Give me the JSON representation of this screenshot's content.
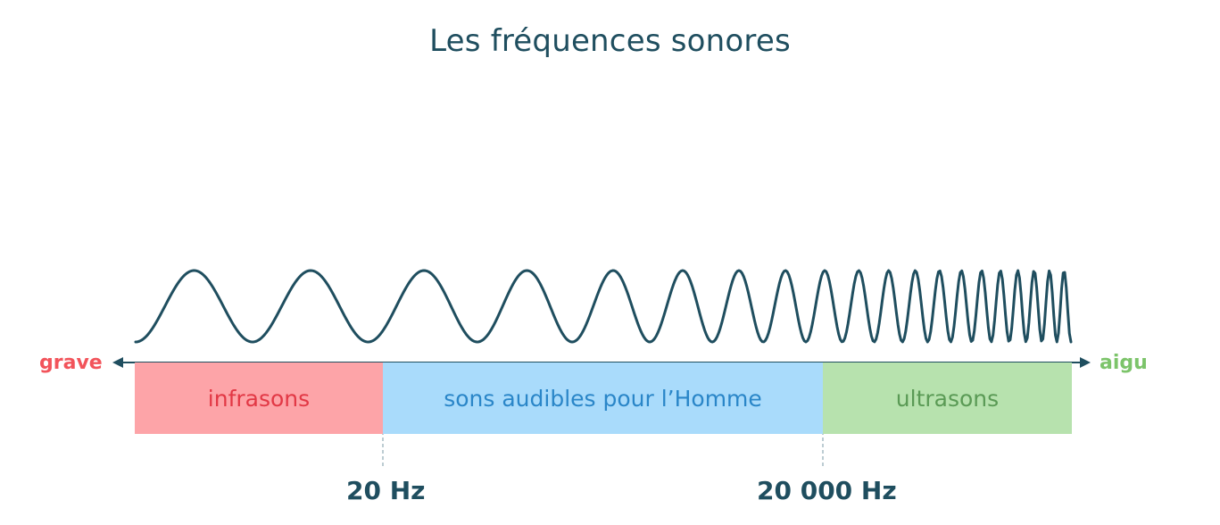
{
  "title": "Les fréquences sonores",
  "axis": {
    "left_label": "grave",
    "right_label": "aigu",
    "left_color": "#f2545b",
    "right_color": "#7cc46a",
    "line_color": "#1f4e5f"
  },
  "bands": [
    {
      "label": "infrasons",
      "bg": "#fda4a8",
      "text_color": "#e23845"
    },
    {
      "label": "sons audibles pour l’Homme",
      "bg": "#a9dbfb",
      "text_color": "#2a86c8"
    },
    {
      "label": "ultrasons",
      "bg": "#b7e2ae",
      "text_color": "#5a9a55"
    }
  ],
  "boundaries": [
    {
      "label": "20 Hz"
    },
    {
      "label": "20 000 Hz"
    }
  ],
  "wave": {
    "color": "#1f4e5f",
    "icon": "sine-wave-increasing-frequency"
  }
}
